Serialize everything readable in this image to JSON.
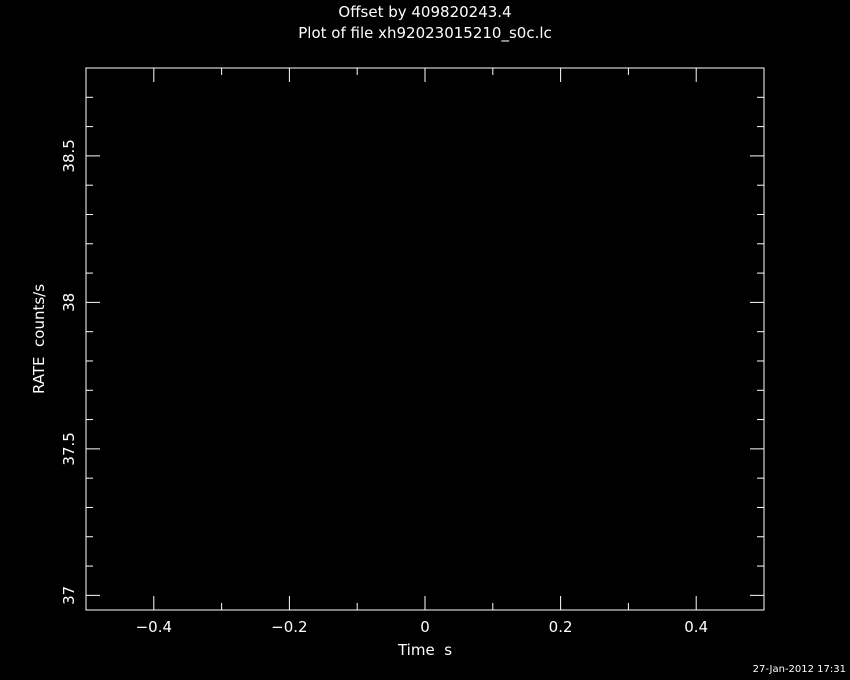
{
  "chart_data": {
    "type": "line",
    "title": "Offset by 409820243.4",
    "subtitle": "Plot of file xh92023015210_s0c.lc",
    "xlabel": "Time  s",
    "ylabel": "RATE  counts/s",
    "xlim": [
      -0.5,
      0.5
    ],
    "ylim": [
      36.95,
      38.8
    ],
    "x_ticks": [
      -0.4,
      -0.2,
      0,
      0.2,
      0.4
    ],
    "x_tick_labels": [
      "−0.4",
      "−0.2",
      "0",
      "0.2",
      "0.4"
    ],
    "y_ticks": [
      37,
      37.5,
      38,
      38.5
    ],
    "y_tick_labels": [
      "37",
      "37.5",
      "38",
      "38.5"
    ],
    "x_minor_step": 0.1,
    "y_minor_step": 0.1,
    "grid": false,
    "series": [],
    "timestamp": "27-Jan-2012 17:31",
    "colors": {
      "background": "#000000",
      "foreground": "#ffffff"
    }
  }
}
